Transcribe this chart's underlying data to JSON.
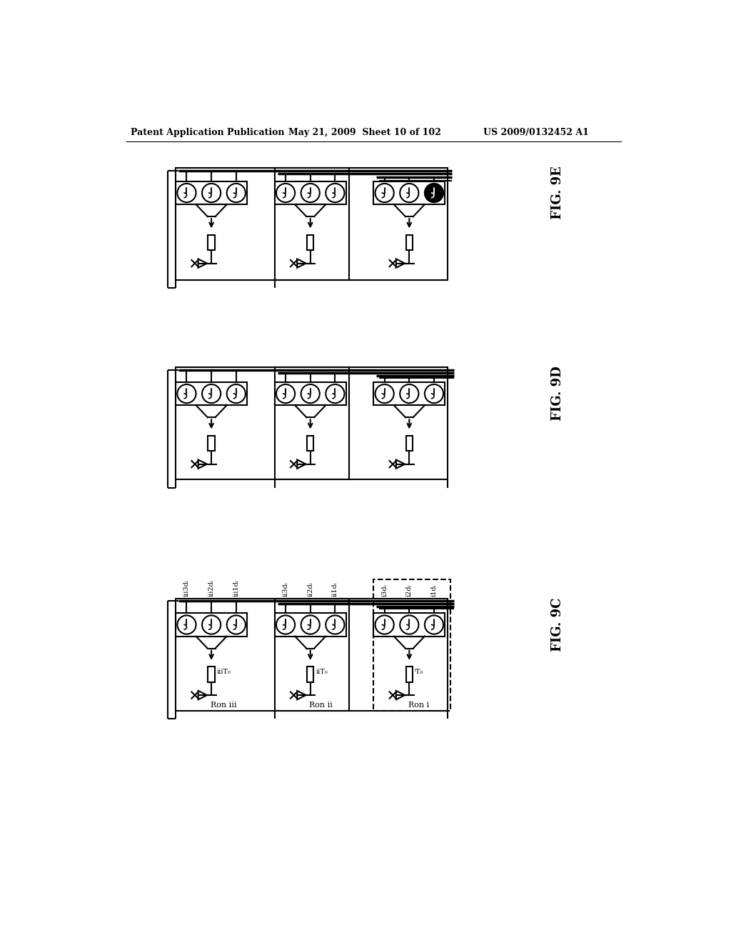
{
  "header_left": "Patent Application Publication",
  "header_mid": "May 21, 2009  Sheet 10 of 102",
  "header_right": "US 2009/0132452 A1",
  "background": "#ffffff",
  "line_color": "#000000",
  "fig9e_label": "FIG. 9E",
  "fig9d_label": "FIG. 9D",
  "fig9c_label": "FIG. 9C",
  "fig9c_labels_rotated": [
    "iii3dᵢ",
    "iii2dᵢ",
    "iii1dᵢ",
    "ii3dᵢ",
    "ii2dᵢ",
    "ii1dᵢ",
    "i3dᵢ",
    "i2dᵢ",
    "i1dᵢ"
  ],
  "fig9c_To_labels": [
    "iiiT₀",
    "iiT₀",
    "ⁱT₀"
  ],
  "fig9c_Ron_labels": [
    "Ron iii",
    "Ron ii",
    "Ron i"
  ]
}
